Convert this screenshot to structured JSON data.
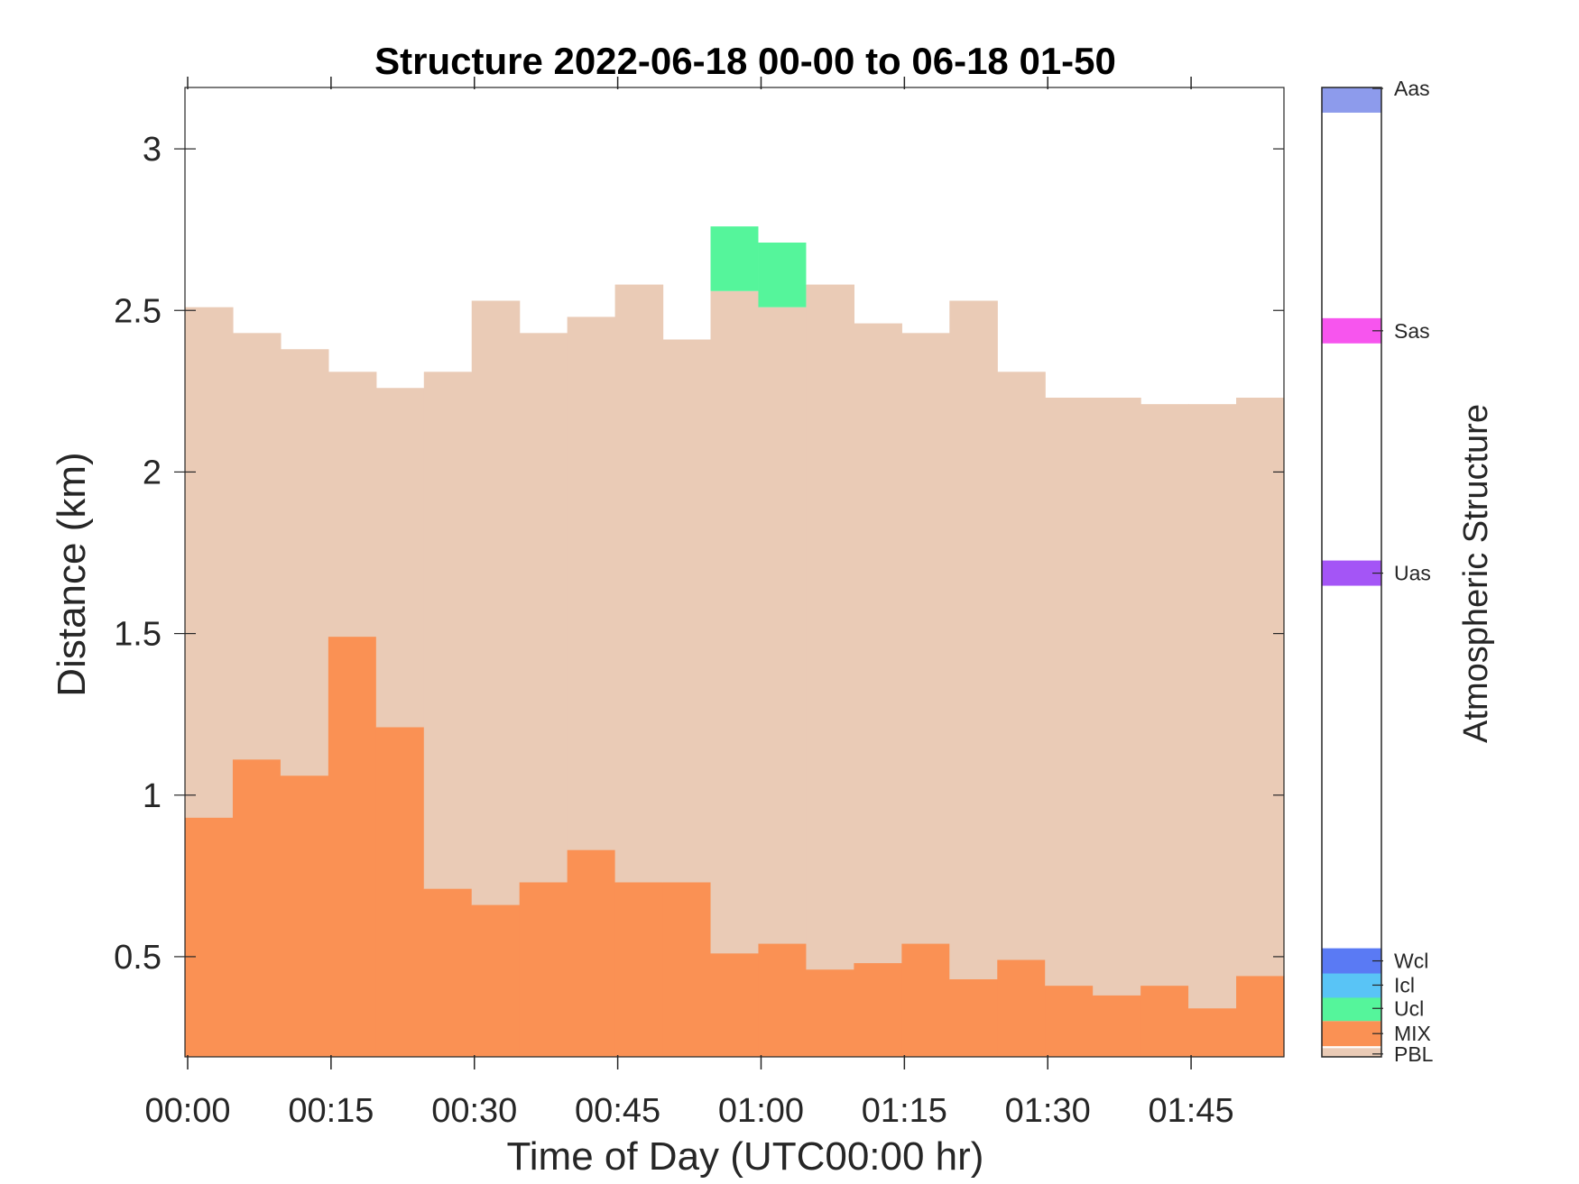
{
  "chart_data": {
    "type": "area",
    "title": "Structure 2022-06-18 00-00 to 06-18 01-50",
    "xlabel": "Time of Day (UTC00:00 hr)",
    "ylabel": "Distance (km)",
    "x_tick_labels": [
      "00:00",
      "00:15",
      "00:30",
      "00:45",
      "01:00",
      "01:15",
      "01:30",
      "01:45"
    ],
    "x_tick_minutes": [
      0,
      15,
      30,
      45,
      60,
      75,
      90,
      105
    ],
    "xlim_minutes": [
      0,
      115
    ],
    "y_tick_labels": [
      "0.5",
      "1",
      "1.5",
      "2",
      "2.5",
      "3"
    ],
    "y_ticks": [
      0.5,
      1,
      1.5,
      2,
      2.5,
      3
    ],
    "ylim": [
      0.19,
      3.19
    ],
    "grid": false,
    "bin_start_minutes": [
      0,
      5,
      10,
      15,
      20,
      25,
      30,
      35,
      40,
      45,
      50,
      55,
      60,
      65,
      70,
      75,
      80,
      85,
      90,
      95,
      100,
      105,
      110
    ],
    "series": [
      {
        "name": "MIX",
        "color": "#fa9154",
        "top": [
          0.93,
          1.11,
          1.06,
          1.49,
          1.21,
          0.71,
          0.66,
          0.73,
          0.83,
          0.73,
          0.73,
          0.51,
          0.54,
          0.46,
          0.48,
          0.54,
          0.43,
          0.49,
          0.41,
          0.38,
          0.41,
          0.34,
          0.44
        ]
      },
      {
        "name": "PBL",
        "color": "#eacbb6",
        "top": [
          2.51,
          2.43,
          2.38,
          2.31,
          2.26,
          2.31,
          2.53,
          2.43,
          2.48,
          2.58,
          2.41,
          2.56,
          2.51,
          2.58,
          2.46,
          2.43,
          2.53,
          2.31,
          2.23,
          2.23,
          2.21,
          2.21,
          2.23
        ]
      },
      {
        "name": "Ucl",
        "color": "#55f59b",
        "segments": [
          {
            "start_minute": 55,
            "bottom": 2.56,
            "top": 2.76
          },
          {
            "start_minute": 60,
            "bottom": 2.51,
            "top": 2.71
          }
        ]
      }
    ],
    "colorbar": {
      "label": "Atmospheric Structure",
      "entries": [
        {
          "name": "PBL",
          "color": "#eacbb6"
        },
        {
          "name": "MIX",
          "color": "#fa9154"
        },
        {
          "name": "Ucl",
          "color": "#55f59b"
        },
        {
          "name": "Icl",
          "color": "#59c4f6"
        },
        {
          "name": "Wcl",
          "color": "#5a7af4"
        },
        {
          "name": "Uas",
          "color": "#a455f6"
        },
        {
          "name": "Sas",
          "color": "#f755ee"
        },
        {
          "name": "Aas",
          "color": "#8d9bec"
        }
      ]
    }
  }
}
